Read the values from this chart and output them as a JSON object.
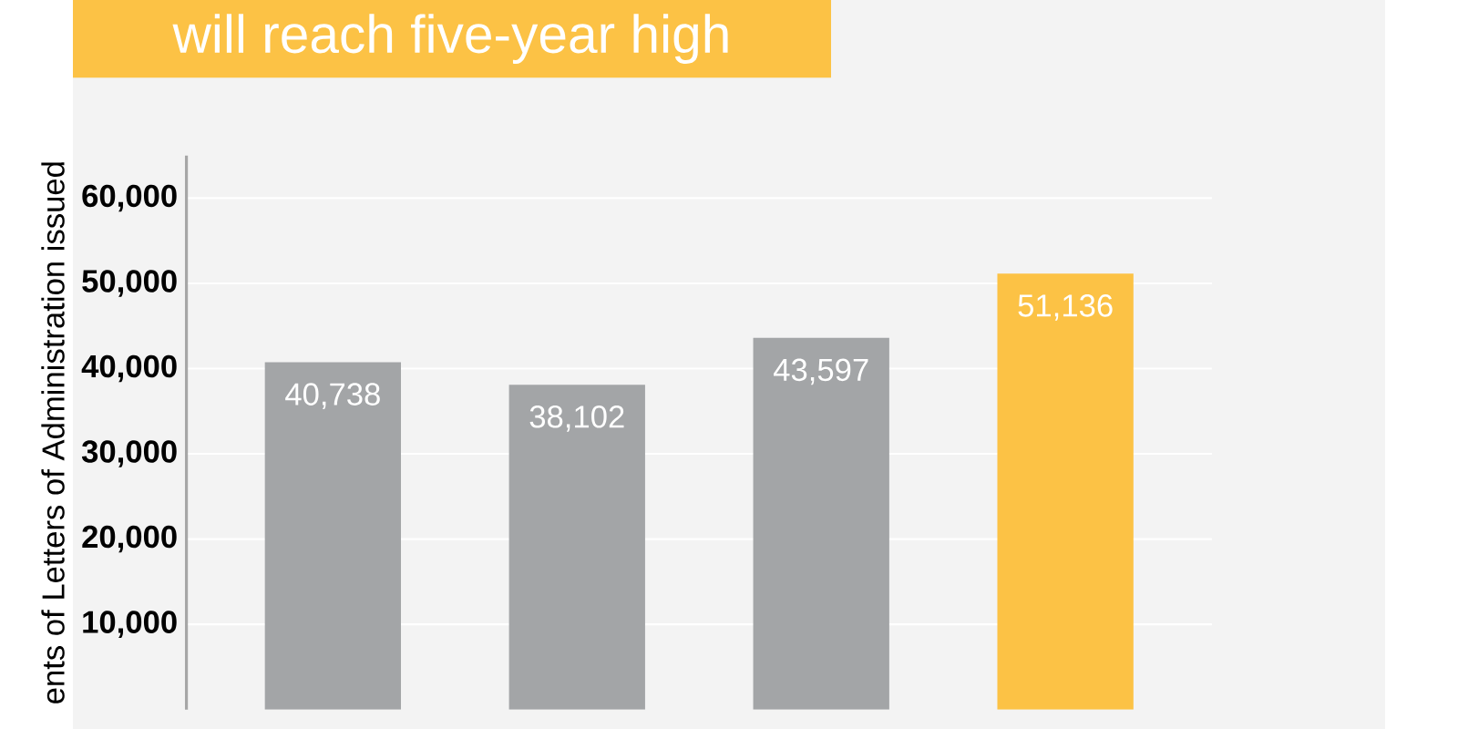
{
  "chart_data": {
    "type": "bar",
    "title": "will reach five-year high",
    "ylabel": "ents of Letters of Administration issued",
    "categories": [
      null,
      null,
      null,
      null
    ],
    "values": [
      40738,
      38102,
      43597,
      51136
    ],
    "colors": [
      "#a3a5a7",
      "#a3a5a7",
      "#a3a5a7",
      "#fcc245"
    ],
    "value_labels": [
      "40,738",
      "38,102",
      "43,597",
      "51,136"
    ],
    "ylim": [
      0,
      65000
    ],
    "yticks": [
      {
        "value": 10000,
        "label": "10,000"
      },
      {
        "value": 20000,
        "label": "20,000"
      },
      {
        "value": 30000,
        "label": "30,000"
      },
      {
        "value": 40000,
        "label": "40,000"
      },
      {
        "value": 50000,
        "label": "50,000"
      },
      {
        "value": 60000,
        "label": "60,000"
      }
    ],
    "grid": "y"
  }
}
